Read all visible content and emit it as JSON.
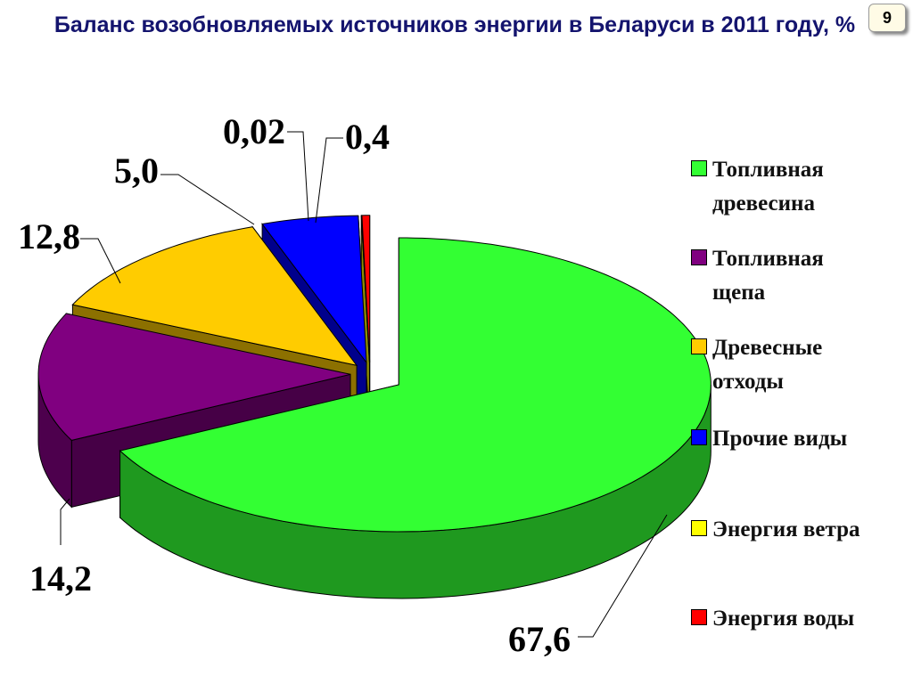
{
  "page_number": "9",
  "chart_data": {
    "type": "pie3d",
    "title": "Баланс возобновляемых источников энергии в Беларуси в 2011 году, %",
    "categories": [
      "Топливная древесина",
      "Топливная щепа",
      "Древесные отходы",
      "Прочие виды",
      "Энергия ветра",
      "Энергия воды"
    ],
    "values": [
      67.6,
      14.2,
      12.8,
      5.0,
      0.02,
      0.4
    ],
    "value_labels": [
      "67,6",
      "14,2",
      "12,8",
      "5,0",
      "0,02",
      "0,4"
    ],
    "colors": [
      "#33ff33",
      "#800080",
      "#ffcc00",
      "#0000ff",
      "#ffff00",
      "#ff0000"
    ]
  }
}
